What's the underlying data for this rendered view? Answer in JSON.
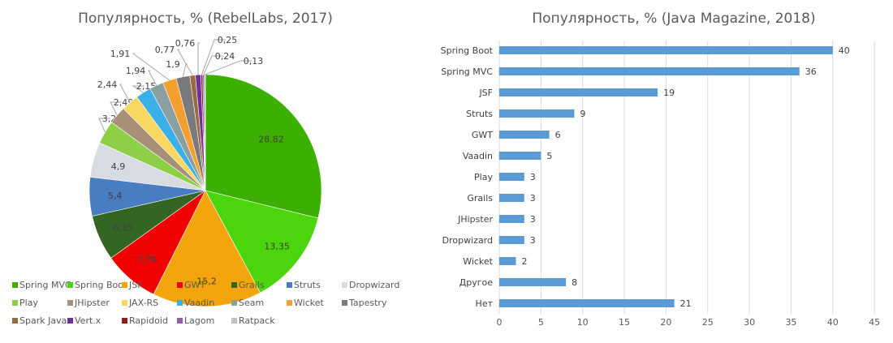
{
  "chart_data": [
    {
      "type": "pie",
      "title": "Популярность, % (RebelLabs, 2017)",
      "legend_position": "bottom",
      "start": "top, clockwise",
      "categories": [
        "Spring MVC",
        "Spring Boot",
        "JSF",
        "GWT",
        "Grails",
        "Struts",
        "Dropwizard",
        "Play",
        "JHipster",
        "JAX-RS",
        "Vaadin",
        "Seam",
        "Wicket",
        "Tapestry",
        "Spark Java",
        "Vert.x",
        "Rapidoid",
        "Lagom",
        "Ratpack"
      ],
      "values": [
        28.82,
        13.35,
        15.2,
        7.74,
        6.35,
        5.4,
        4.9,
        3.26,
        2.49,
        2.44,
        2.15,
        1.94,
        1.91,
        1.9,
        0.77,
        0.76,
        0.25,
        0.24,
        0.13
      ],
      "value_labels": [
        "28,82",
        "13,35",
        "15,2",
        "7,74",
        "6,35",
        "5,4",
        "4,9",
        "3,26",
        "2,49",
        "2,44",
        "2,15",
        "1,94",
        "1,91",
        "1,9",
        "0,77",
        "0,76",
        "0,25",
        "0,24",
        "0,13"
      ],
      "colors": [
        "#3cb000",
        "#4cd40c",
        "#f4a40c",
        "#f00000",
        "#336622",
        "#4a7cc0",
        "#d8dce2",
        "#8ecf48",
        "#a89078",
        "#f8d860",
        "#3caee8",
        "#8aa0a0",
        "#f4a030",
        "#7a7a7a",
        "#9a6a40",
        "#70309a",
        "#8c2020",
        "#9060a8",
        "#c0c0c0"
      ]
    },
    {
      "type": "bar",
      "orientation": "horizontal",
      "title": "Популярность, % (Java Magazine, 2018)",
      "categories": [
        "Spring Boot",
        "Spring MVC",
        "JSF",
        "Struts",
        "GWT",
        "Vaadin",
        "Play",
        "Grails",
        "JHipster",
        "Dropwizard",
        "Wicket",
        "Другое",
        "Нет"
      ],
      "values": [
        40,
        36,
        19,
        9,
        6,
        5,
        3,
        3,
        3,
        3,
        2,
        8,
        21
      ],
      "xlim": [
        0,
        45
      ],
      "xticks": [
        0,
        5,
        10,
        15,
        20,
        25,
        30,
        35,
        40,
        45
      ],
      "grid": true,
      "bar_color": "#5b9bd5"
    }
  ]
}
